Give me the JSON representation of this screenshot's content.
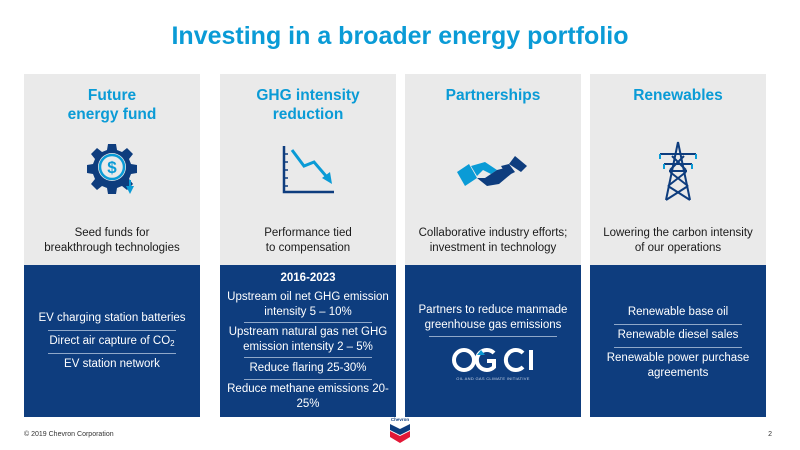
{
  "title": "Investing in a broader energy portfolio",
  "columns": [
    {
      "heading": "Future energy fund",
      "heading_lines": [
        "Future",
        "energy fund"
      ],
      "icon": "dollar-gear-icon",
      "description_lines": [
        "Seed funds for",
        "breakthrough technologies"
      ],
      "items": [
        "EV charging station batteries",
        "Direct air capture of CO",
        "EV station network"
      ],
      "co2_subscript": "2"
    },
    {
      "heading": "GHG intensity reduction",
      "heading_lines": [
        "GHG intensity",
        "reduction"
      ],
      "icon": "declining-chart-icon",
      "description_lines": [
        "Performance tied",
        "to compensation"
      ],
      "period": "2016-2023",
      "items": [
        "Upstream oil net GHG emission intensity 5 – 10%",
        "Upstream natural gas net GHG emission intensity 2 – 5%",
        "Reduce flaring 25-30%",
        "Reduce methane emissions 20-25%"
      ]
    },
    {
      "heading": "Partnerships",
      "heading_lines": [
        "Partnerships"
      ],
      "icon": "handshake-icon",
      "description_lines": [
        "Collaborative industry efforts;",
        "investment in technology"
      ],
      "items": [
        "Partners to reduce manmade greenhouse gas emissions"
      ],
      "logo_text": "OGCI",
      "logo_caption": "OIL AND GAS CLIMATE INITIATIVE"
    },
    {
      "heading": "Renewables",
      "heading_lines": [
        "Renewables"
      ],
      "icon": "transmission-tower-icon",
      "description_lines": [
        "Lowering the carbon intensity",
        "of our operations"
      ],
      "items": [
        "Renewable base oil",
        "Renewable diesel sales",
        "Renewable power purchase agreements"
      ]
    }
  ],
  "footer": {
    "copyright": "© 2019 Chevron Corporation",
    "page_number": "2",
    "logo_text": "Chevron"
  },
  "colors": {
    "accent": "#0a9bd6",
    "navy": "#0e3d7e",
    "panel_gray": "#eaeaea",
    "chevron_red": "#e31837"
  }
}
